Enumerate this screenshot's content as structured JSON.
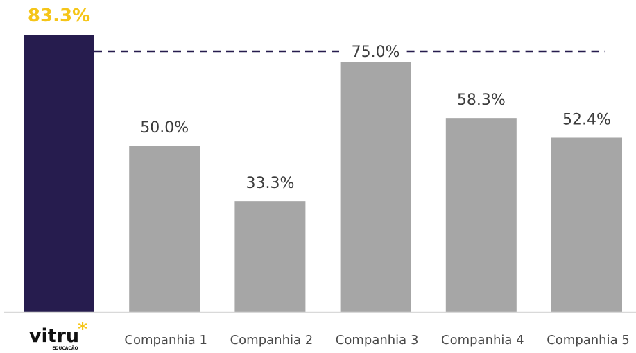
{
  "chart_data": {
    "type": "bar",
    "categories": [
      "Vitru Educação",
      "Companhia 1",
      "Companhia 2",
      "Companhia 3",
      "Companhia 4",
      "Companhia 5"
    ],
    "values": [
      83.3,
      50.0,
      33.3,
      75.0,
      58.3,
      52.4
    ],
    "data_labels": [
      "83.3%",
      "50.0%",
      "33.3%",
      "75.0%",
      "58.3%",
      "52.4%"
    ],
    "first_category_is_logo": true,
    "logo": {
      "text": "vitru",
      "subtext": "EDUCAÇÃO",
      "asterisk": "*"
    },
    "reference_line": {
      "value": 75.0,
      "label": "75.0%",
      "style": "dashed"
    },
    "title": "",
    "xlabel": "",
    "ylabel": "",
    "ylim": [
      0,
      90
    ],
    "grid": false,
    "legend": "none"
  },
  "colors": {
    "highlight_bar": "#261c4e",
    "bar": "#a6a6a6",
    "highlight_label": "#f5c518",
    "label": "#3c3c3c",
    "reference_line": "#261c4e",
    "axis": "#d9d9d9",
    "category_text": "#4a4a4a",
    "logo_text": "#111111",
    "logo_asterisk": "#f5c518"
  }
}
